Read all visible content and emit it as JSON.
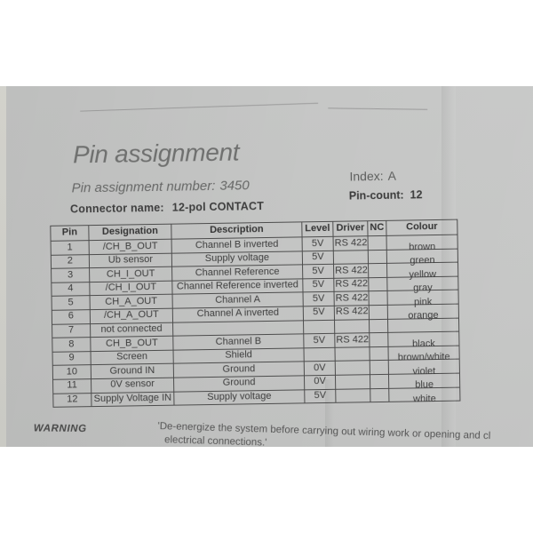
{
  "document": {
    "title": "Pin assignment",
    "pin_assignment_number": {
      "label": "Pin assignment number:",
      "value": "3450"
    },
    "connector_name": {
      "label": "Connector name:",
      "value": "12-pol CONTACT"
    },
    "index": {
      "label": "Index:",
      "value": "A"
    },
    "pin_count": {
      "label": "Pin-count:",
      "value": "12"
    }
  },
  "table": {
    "headers": [
      "Pin",
      "Designation",
      "Description",
      "Level",
      "Driver",
      "NC",
      "Colour"
    ],
    "rows": [
      [
        "1",
        "/CH_B_OUT",
        "Channel B inverted",
        "5V",
        "RS 422",
        "",
        "brown"
      ],
      [
        "2",
        "Ub sensor",
        "Supply voltage",
        "5V",
        "",
        "",
        "green"
      ],
      [
        "3",
        "CH_I_OUT",
        "Channel Reference",
        "5V",
        "RS 422",
        "",
        "yellow"
      ],
      [
        "4",
        "/CH_I_OUT",
        "Channel Reference inverted",
        "5V",
        "RS 422",
        "",
        "gray"
      ],
      [
        "5",
        "CH_A_OUT",
        "Channel A",
        "5V",
        "RS 422",
        "",
        "pink"
      ],
      [
        "6",
        "/CH_A_OUT",
        "Channel A inverted",
        "5V",
        "RS 422",
        "",
        "orange"
      ],
      [
        "7",
        "not connected",
        "",
        "",
        "",
        "",
        ""
      ],
      [
        "8",
        "CH_B_OUT",
        "Channel B",
        "5V",
        "RS 422",
        "",
        "black"
      ],
      [
        "9",
        "Screen",
        "Shield",
        "",
        "",
        "",
        "brown/white"
      ],
      [
        "10",
        "Ground IN",
        "Ground",
        "0V",
        "",
        "",
        "violet"
      ],
      [
        "11",
        "0V sensor",
        "Ground",
        "0V",
        "",
        "",
        "blue"
      ],
      [
        "12",
        "Supply Voltage IN",
        "Supply voltage",
        "5V",
        "",
        "",
        "white"
      ]
    ]
  },
  "warning": {
    "label": "WARNING",
    "line1": "'De-energize the system before carrying out wiring work or opening and cl",
    "line2": "electrical connections.'"
  },
  "colors": {
    "paper_gray": "#c4c5c4",
    "text_dark": "#3d3d3d",
    "heading_gray": "#6f706f"
  }
}
